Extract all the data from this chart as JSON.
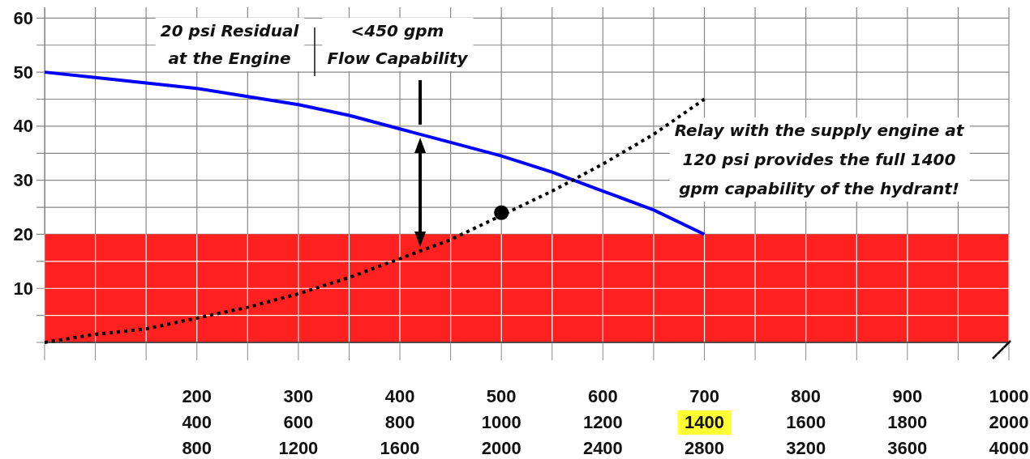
{
  "chart_data": {
    "type": "line",
    "categories": [
      null,
      null,
      null,
      "200\n400\n800",
      null,
      "300\n600\n1200",
      null,
      "400\n800\n1600",
      null,
      "500\n1000\n2000",
      null,
      "600\n1200\n2400",
      null,
      "700\n1400\n2800",
      null,
      "800\n1600\n3200",
      null,
      "900\n1800\n3600",
      null,
      "1000\n2000\n4000"
    ],
    "ylim": [
      0,
      62
    ],
    "yticks": [
      {
        "value": 0,
        "label": null
      },
      {
        "value": 5,
        "label": null
      },
      10,
      {
        "value": 15,
        "label": null
      },
      20,
      {
        "value": 25,
        "label": null
      },
      30,
      {
        "value": 35,
        "label": null
      },
      40,
      {
        "value": 45,
        "label": null
      },
      50,
      {
        "value": 55,
        "label": null
      },
      60
    ],
    "grid": true,
    "bands": [
      {
        "axis": "y",
        "from": 0,
        "to": 20,
        "label": null,
        "color": "#ff2020"
      }
    ],
    "series": [
      {
        "color": "#0000ff",
        "values": [
          50,
          49,
          48,
          47,
          45.5,
          44,
          42,
          39.5,
          37,
          34.5,
          31.5,
          28,
          24.5,
          20,
          null,
          null,
          null,
          null,
          null,
          null
        ],
        "line_style": "solid",
        "marker": "none"
      },
      {
        "color": "#000000",
        "values": [
          0,
          1.5,
          2.5,
          4.5,
          6.5,
          9,
          12,
          15.5,
          19,
          23.5,
          28,
          33,
          38.5,
          45,
          null,
          null,
          null,
          null,
          null,
          null
        ],
        "line_style": "dotted",
        "marker": "none"
      },
      {
        "type": "scatter",
        "color": "#000000",
        "values": [
          null,
          null,
          null,
          null,
          null,
          null,
          null,
          null,
          null,
          24,
          null,
          null,
          null,
          null,
          null,
          null,
          null,
          null,
          null,
          null
        ],
        "marker": "circle"
      }
    ],
    "annotations": [
      "20 psi Residual\nat the Engine",
      "<450 gpm\nFlow Capability",
      "Relay with the supply engine at\n120 psi provides the full 1400\ngpm capability of the hydrant!"
    ]
  }
}
